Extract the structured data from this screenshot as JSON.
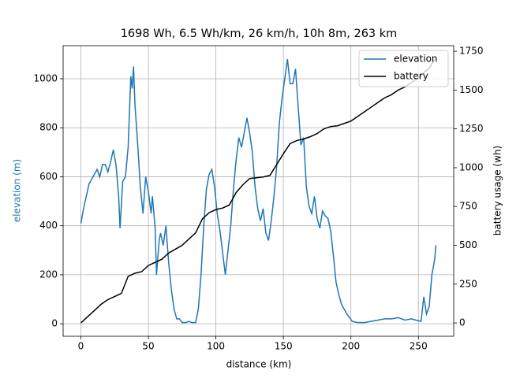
{
  "chart_data": {
    "type": "line",
    "title": "1698 Wh, 6.5 Wh/km, 26 km/h, 10h 8m, 263 km",
    "xlabel": "distance (km)",
    "ylabel": "elevation (m)",
    "ylabel_color": "#1f77b4",
    "y2label": "battery usage (wh)",
    "xlim": [
      -13.15,
      276.15
    ],
    "xticks": [
      0,
      50,
      100,
      150,
      200,
      250
    ],
    "ylim": [
      -51,
      1135
    ],
    "yticks": [
      0,
      200,
      400,
      600,
      800,
      1000
    ],
    "y2lim": [
      -86,
      1786
    ],
    "y2ticks": [
      0,
      250,
      500,
      750,
      1000,
      1250,
      1500,
      1750
    ],
    "grid": true,
    "legend": "upper right",
    "series": [
      {
        "name": "elevation",
        "color": "#1f77b4",
        "x": [
          0,
          2,
          4,
          6,
          8,
          10,
          12,
          14,
          16,
          18,
          20,
          22,
          24,
          26,
          28,
          29,
          31,
          33,
          35,
          37,
          38,
          39,
          40,
          42,
          44,
          46,
          48,
          50,
          52,
          53,
          55,
          56,
          58,
          59,
          61,
          63,
          65,
          67,
          69,
          71,
          73,
          75,
          78,
          80,
          82,
          85,
          87,
          89,
          91,
          93,
          95,
          97,
          99,
          101,
          103,
          105,
          107,
          109,
          111,
          113,
          115,
          117,
          119,
          121,
          123,
          125,
          127,
          129,
          131,
          133,
          135,
          137,
          139,
          141,
          143,
          145,
          147,
          149,
          151,
          153,
          155,
          157,
          159,
          161,
          163,
          165,
          167,
          169,
          171,
          173,
          175,
          177,
          179,
          181,
          183,
          185,
          187,
          189,
          191,
          193,
          195,
          197,
          199,
          201,
          205,
          210,
          215,
          220,
          225,
          230,
          235,
          240,
          245,
          248,
          252,
          254,
          256,
          258,
          260,
          262,
          263
        ],
        "values": [
          410,
          470,
          520,
          570,
          590,
          610,
          630,
          600,
          650,
          650,
          620,
          660,
          710,
          650,
          520,
          390,
          580,
          600,
          720,
          1010,
          960,
          1050,
          900,
          740,
          560,
          450,
          600,
          540,
          450,
          520,
          390,
          200,
          340,
          370,
          320,
          400,
          250,
          140,
          60,
          20,
          20,
          5,
          5,
          10,
          5,
          5,
          60,
          200,
          400,
          550,
          610,
          630,
          560,
          450,
          380,
          290,
          200,
          300,
          400,
          550,
          670,
          760,
          720,
          780,
          840,
          780,
          700,
          560,
          470,
          420,
          470,
          370,
          340,
          420,
          520,
          640,
          820,
          920,
          1000,
          1080,
          980,
          980,
          1040,
          880,
          730,
          760,
          560,
          480,
          450,
          520,
          430,
          390,
          460,
          440,
          430,
          380,
          280,
          170,
          120,
          80,
          60,
          40,
          25,
          10,
          5,
          5,
          10,
          15,
          20,
          20,
          25,
          15,
          20,
          15,
          10,
          110,
          40,
          70,
          200,
          260,
          320
        ]
      },
      {
        "name": "battery",
        "color": "#000000",
        "axis": "y2",
        "x": [
          0,
          5,
          10,
          15,
          20,
          25,
          30,
          35,
          40,
          45,
          50,
          55,
          60,
          65,
          70,
          75,
          80,
          85,
          90,
          95,
          100,
          105,
          110,
          115,
          120,
          125,
          130,
          135,
          140,
          145,
          150,
          155,
          160,
          165,
          170,
          175,
          180,
          185,
          190,
          195,
          200,
          205,
          210,
          215,
          220,
          225,
          230,
          235,
          240,
          245,
          250,
          255,
          258,
          262
        ],
        "values": [
          0,
          40,
          80,
          120,
          150,
          170,
          190,
          300,
          320,
          330,
          370,
          390,
          410,
          450,
          475,
          500,
          540,
          580,
          670,
          710,
          730,
          740,
          760,
          840,
          890,
          930,
          935,
          940,
          950,
          1020,
          1090,
          1155,
          1175,
          1185,
          1200,
          1220,
          1250,
          1265,
          1270,
          1285,
          1300,
          1330,
          1360,
          1390,
          1420,
          1450,
          1470,
          1500,
          1520,
          1550,
          1580,
          1620,
          1640,
          1698
        ]
      }
    ]
  }
}
